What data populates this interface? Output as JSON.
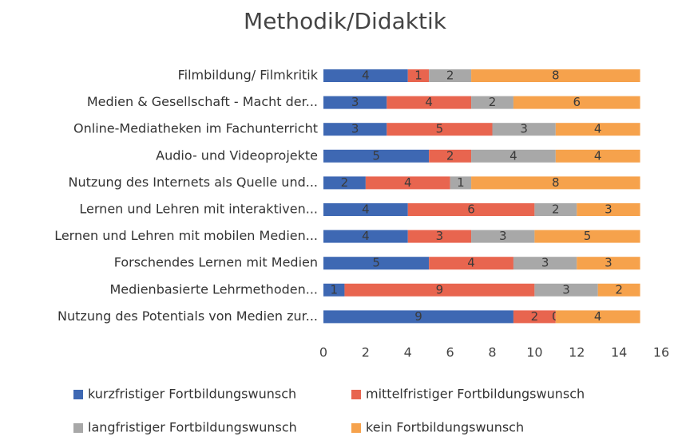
{
  "chart_data": {
    "type": "stacked-bar-horizontal",
    "title": "Methodik/Didaktik",
    "categories": [
      "Filmbildung/ Filmkritik",
      "Medien & Gesellschaft - Macht der...",
      "Online-Mediatheken im Fachunterricht",
      "Audio- und Videoprojekte",
      "Nutzung des Internets als Quelle und...",
      "Lernen und Lehren mit interaktiven...",
      "Lernen und Lehren mit mobilen Medien...",
      "Forschendes Lernen mit Medien",
      "Medienbasierte Lehrmethoden...",
      "Nutzung des Potentials von Medien zur..."
    ],
    "series": [
      {
        "name": "kurzfristiger Fortbildungswunsch",
        "color": "#3e68b3",
        "values": [
          4,
          3,
          3,
          5,
          2,
          4,
          4,
          5,
          1,
          9
        ]
      },
      {
        "name": "mittelfristiger Fortbildungswunsch",
        "color": "#e8654f",
        "values": [
          1,
          4,
          5,
          2,
          4,
          6,
          3,
          4,
          9,
          2
        ]
      },
      {
        "name": "langfristiger Fortbildungswunsch",
        "color": "#a8a8a8",
        "values": [
          2,
          2,
          3,
          4,
          1,
          2,
          3,
          3,
          3,
          0
        ]
      },
      {
        "name": "kein Fortbildungswunsch",
        "color": "#f6a24c",
        "values": [
          8,
          6,
          4,
          4,
          8,
          3,
          5,
          3,
          2,
          4
        ]
      }
    ],
    "xlim": [
      0,
      16
    ],
    "xticks": [
      0,
      2,
      4,
      6,
      8,
      10,
      12,
      14,
      16
    ],
    "grid": false
  }
}
